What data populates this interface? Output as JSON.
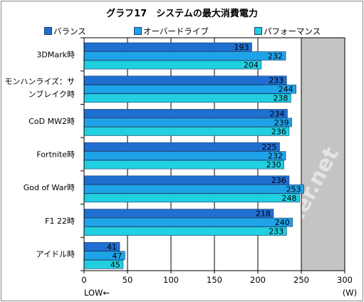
{
  "chart_data": {
    "type": "bar",
    "orientation": "horizontal",
    "title": "グラフ17　システムの最大消費電力",
    "categories": [
      "3DMark時",
      "モンハンライズ：サンブレイク時",
      "CoD MW2時",
      "Fortnite時",
      "God of War時",
      "F1 22時",
      "アイドル時"
    ],
    "category_lines": [
      [
        "3DMark時"
      ],
      [
        "モンハンライズ：サ",
        "ンブレイク時"
      ],
      [
        "CoD MW2時"
      ],
      [
        "Fortnite時"
      ],
      [
        "God of War時"
      ],
      [
        "F1 22時"
      ],
      [
        "アイドル時"
      ]
    ],
    "series": [
      {
        "name": "バランス",
        "color": "#1f6fd1",
        "values": [
          193,
          233,
          234,
          225,
          236,
          218,
          41
        ]
      },
      {
        "name": "オーバードライブ",
        "color": "#1fa3e8",
        "values": [
          232,
          244,
          239,
          232,
          253,
          240,
          47
        ]
      },
      {
        "name": "パフォーマンス",
        "color": "#20cfe0",
        "values": [
          204,
          238,
          236,
          230,
          248,
          233,
          45
        ]
      }
    ],
    "xlim": [
      0,
      300
    ],
    "xticks": [
      0,
      50,
      100,
      150,
      200,
      250,
      300
    ],
    "xlabel_note": "LOW←",
    "unit": "(W)",
    "legend_position": "top",
    "grid": true,
    "shaded_region": [
      250,
      300
    ],
    "watermark": "4Gamer.net"
  }
}
